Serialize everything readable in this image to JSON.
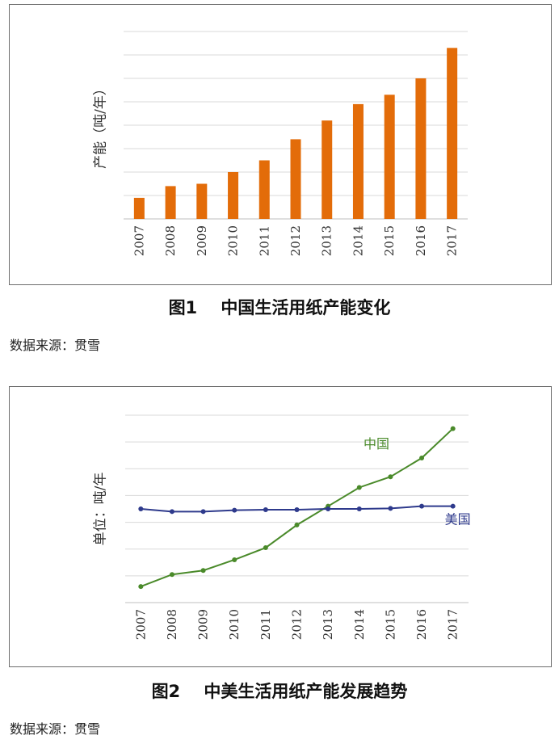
{
  "figure1": {
    "caption": "图1    中国生活用纸产能变化",
    "source": "数据来源：贯雪"
  },
  "figure2": {
    "caption": "图2    中美生活用纸产能发展趋势",
    "source": "数据来源：贯雪"
  },
  "chart_data": [
    {
      "type": "bar",
      "ylabel": "产能（吨/年）",
      "categories": [
        "2007",
        "2008",
        "2009",
        "2010",
        "2011",
        "2012",
        "2013",
        "2014",
        "2015",
        "2016",
        "2017"
      ],
      "values": [
        0.9,
        1.4,
        1.5,
        2.0,
        2.5,
        3.4,
        4.2,
        4.9,
        5.3,
        6.0,
        7.3
      ],
      "ylim": [
        0,
        8
      ],
      "grid": true,
      "color": "#e36c09"
    },
    {
      "type": "line",
      "ylabel": "单位：吨/年",
      "categories": [
        "2007",
        "2008",
        "2009",
        "2010",
        "2011",
        "2012",
        "2013",
        "2014",
        "2015",
        "2016",
        "2017"
      ],
      "series": [
        {
          "name": "中国",
          "color": "#4a8a2a",
          "values": [
            0.6,
            1.05,
            1.2,
            1.6,
            2.05,
            2.9,
            3.6,
            4.3,
            4.7,
            5.4,
            6.5
          ]
        },
        {
          "name": "美国",
          "color": "#2e3a8c",
          "values": [
            3.5,
            3.4,
            3.4,
            3.45,
            3.47,
            3.47,
            3.5,
            3.5,
            3.52,
            3.6,
            3.6
          ]
        }
      ],
      "ylim": [
        0,
        7
      ],
      "grid": true
    }
  ]
}
